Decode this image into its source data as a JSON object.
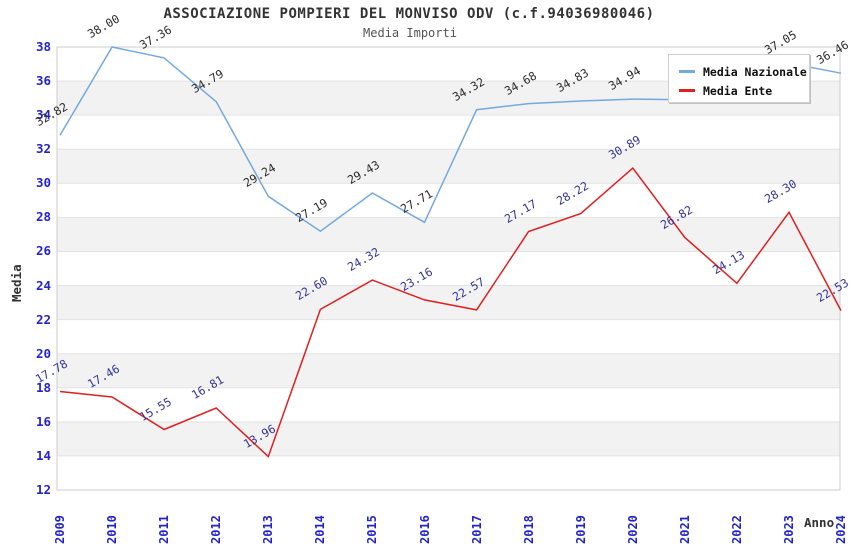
{
  "title": "ASSOCIAZIONE POMPIERI DEL MONVISO ODV (c.f.94036980046)",
  "subtitle": "Media Importi",
  "chart_data": {
    "type": "line",
    "x": [
      2009,
      2010,
      2011,
      2012,
      2013,
      2014,
      2015,
      2016,
      2017,
      2018,
      2019,
      2020,
      2021,
      2022,
      2023,
      2024
    ],
    "series": [
      {
        "name": "Media Nazionale",
        "color": "#74a9dd",
        "label_color": "#2b2b2b",
        "values": [
          32.82,
          38.0,
          37.36,
          34.79,
          29.24,
          27.19,
          29.43,
          27.71,
          34.32,
          34.68,
          34.83,
          34.94,
          34.9,
          34.75,
          37.05,
          36.46
        ],
        "labels": [
          "32.82",
          "38.00",
          "37.36",
          "34.79",
          "29.24",
          "27.19",
          "29.43",
          "27.71",
          "34.32",
          "34.68",
          "34.83",
          "34.94",
          null,
          null,
          "37.05",
          "36.46"
        ]
      },
      {
        "name": "Media Ente",
        "color": "#e01f1f",
        "label_color": "#333399",
        "values": [
          17.78,
          17.46,
          15.55,
          16.81,
          13.96,
          22.6,
          24.32,
          23.16,
          22.57,
          27.17,
          28.22,
          30.89,
          26.82,
          24.13,
          28.3,
          22.53
        ],
        "labels": [
          "17.78",
          "17.46",
          "15.55",
          "16.81",
          "13.96",
          "22.60",
          "24.32",
          "23.16",
          "22.57",
          "27.17",
          "28.22",
          "30.89",
          "26.82",
          "24.13",
          "28.30",
          "22.53"
        ]
      }
    ],
    "xlabel": "Anno",
    "ylabel": "Media",
    "ylim": [
      12,
      38
    ],
    "ytick_step": 2,
    "grid": "alternating-horizontal-bands",
    "legend_position": "top-right"
  },
  "colors": {
    "tick_label": "#2424cc",
    "band_gray": "#f2f2f2",
    "grid_line": "#e3e3e3",
    "plot_border": "#cccccc",
    "title": "#333333",
    "subtitle": "#555555"
  }
}
